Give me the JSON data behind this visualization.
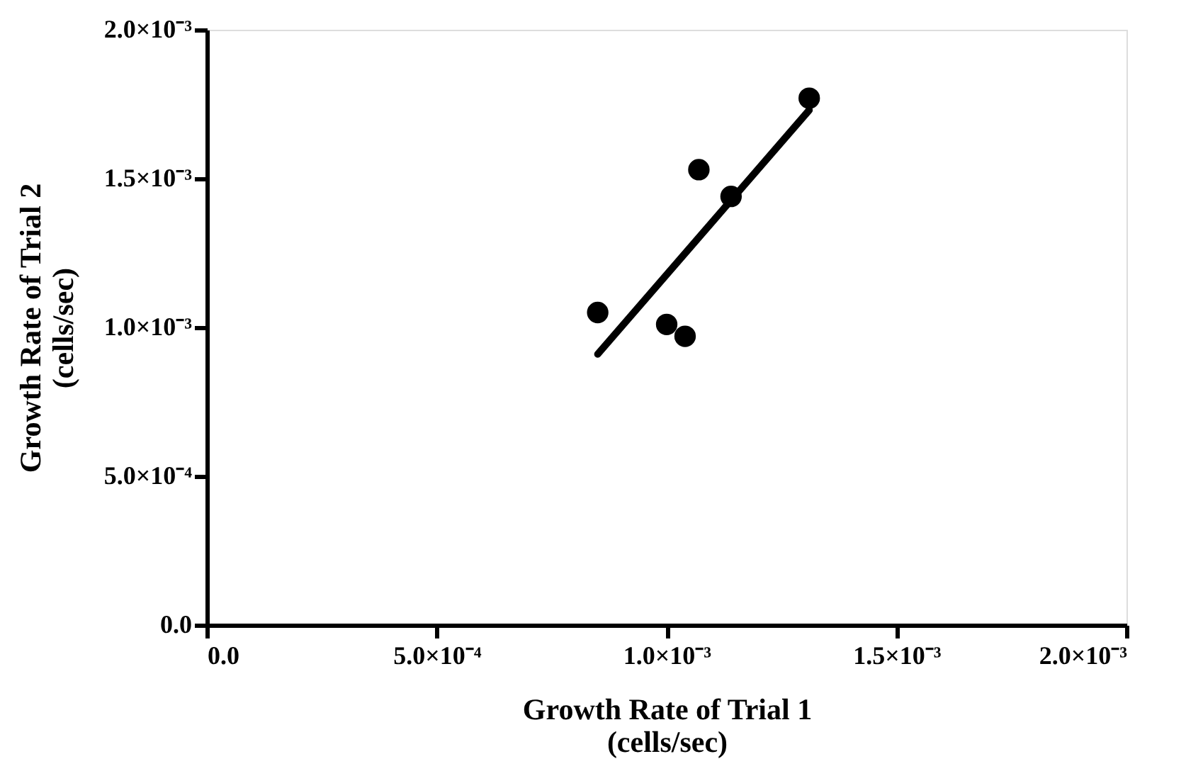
{
  "chart_data": {
    "type": "scatter",
    "xlabel": "Growth Rate of Trial 1\n(cells/sec)",
    "ylabel": "Growth Rate of Trial 2\n(cells/sec)",
    "xlim": [
      0,
      0.002
    ],
    "ylim": [
      0,
      0.002
    ],
    "xticks": [
      {
        "value": 0,
        "label": "0.0"
      },
      {
        "value": 0.0005,
        "label": "5.0×10⁻⁴"
      },
      {
        "value": 0.001,
        "label": "1.0×10⁻³"
      },
      {
        "value": 0.0015,
        "label": "1.5×10⁻³"
      },
      {
        "value": 0.002,
        "label": "2.0×10⁻³"
      }
    ],
    "yticks": [
      {
        "value": 0,
        "label": "0.0"
      },
      {
        "value": 0.0005,
        "label": "5.0×10⁻⁴"
      },
      {
        "value": 0.001,
        "label": "1.0×10⁻³"
      },
      {
        "value": 0.0015,
        "label": "1.5×10⁻³"
      },
      {
        "value": 0.002,
        "label": "2.0×10⁻³"
      }
    ],
    "series": [
      {
        "color": "#000000",
        "marker": "circle",
        "x": [
          0.00085,
          0.00107,
          0.00114,
          0.001,
          0.00104,
          0.00131
        ],
        "values": [
          0.00105,
          0.00153,
          0.00144,
          0.00101,
          0.00097,
          0.00177
        ]
      },
      {
        "type": "line",
        "color": "#000000",
        "line_style": "solid",
        "x": [
          0.00085,
          0.00131
        ],
        "values": [
          0.00091,
          0.00173
        ]
      }
    ]
  }
}
